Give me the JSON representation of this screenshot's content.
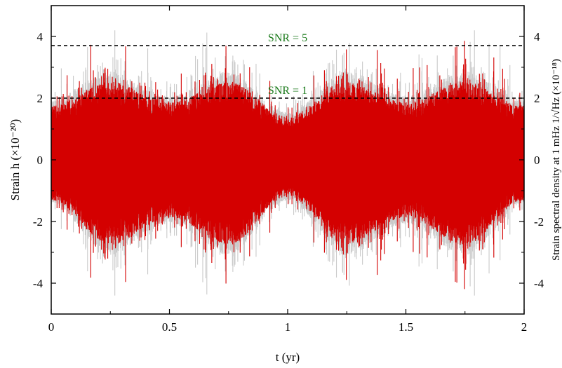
{
  "chart_data": {
    "type": "line",
    "title": "",
    "xlabel": "t (yr)",
    "ylabel_left": "Strain h (×10⁻²⁰)",
    "ylabel_right": "Strain spectral density at 1 mHz 1/√Hz (×10⁻¹⁸)",
    "xlim": [
      0,
      2
    ],
    "ylim": [
      -5,
      5
    ],
    "x_ticks": [
      {
        "value": 0,
        "label": "0"
      },
      {
        "value": 0.5,
        "label": "0.5"
      },
      {
        "value": 1,
        "label": "1"
      },
      {
        "value": 1.5,
        "label": "1.5"
      },
      {
        "value": 2,
        "label": "2"
      }
    ],
    "y_ticks_left": [
      {
        "value": 4,
        "label": "4"
      },
      {
        "value": 2,
        "label": "2"
      },
      {
        "value": 0,
        "label": "0"
      },
      {
        "value": -2,
        "label": "-2"
      },
      {
        "value": -4,
        "label": "-4"
      }
    ],
    "y_ticks_right": [
      {
        "value": 4,
        "label": "4"
      },
      {
        "value": 2,
        "label": "2"
      },
      {
        "value": 0,
        "label": "0"
      },
      {
        "value": -2,
        "label": "-2"
      },
      {
        "value": -4,
        "label": "-4"
      }
    ],
    "reference_lines": [
      {
        "label": "SNR = 5",
        "y": 3.7,
        "style": "dashed",
        "color": "#000000"
      },
      {
        "label": "SNR = 1",
        "y": 2.0,
        "style": "dashed",
        "color": "#000000"
      }
    ],
    "series": [
      {
        "color": "#666666",
        "opacity": 0.35,
        "envelope": {
          "x": [
            0,
            0.25,
            0.5,
            0.75,
            1,
            1.25,
            1.5,
            1.75,
            2
          ],
          "upper": [
            1.8,
            2.6,
            1.9,
            2.6,
            1.4,
            2.6,
            1.9,
            2.6,
            1.8
          ],
          "lower": [
            -1.3,
            -2.8,
            -1.9,
            -2.8,
            -1.2,
            -2.8,
            -1.9,
            -2.8,
            -1.3
          ]
        },
        "peak_range": [
          -4.4,
          4.2
        ]
      },
      {
        "color": "#d40000",
        "opacity": 1.0,
        "envelope": {
          "x": [
            0,
            0.25,
            0.5,
            0.75,
            1,
            1.25,
            1.5,
            1.75,
            2
          ],
          "upper": [
            1.6,
            2.3,
            1.7,
            2.3,
            1.3,
            2.3,
            1.7,
            2.3,
            1.6
          ],
          "lower": [
            -1.2,
            -2.5,
            -1.7,
            -2.5,
            -1.1,
            -2.5,
            -1.7,
            -2.5,
            -1.2
          ]
        },
        "peak_range": [
          -4.4,
          4.1
        ]
      }
    ],
    "grid": false,
    "legend": "none",
    "colors": {
      "signal": "#d40000",
      "noise": "#666666",
      "snr_label": "#1a7a1a"
    }
  }
}
